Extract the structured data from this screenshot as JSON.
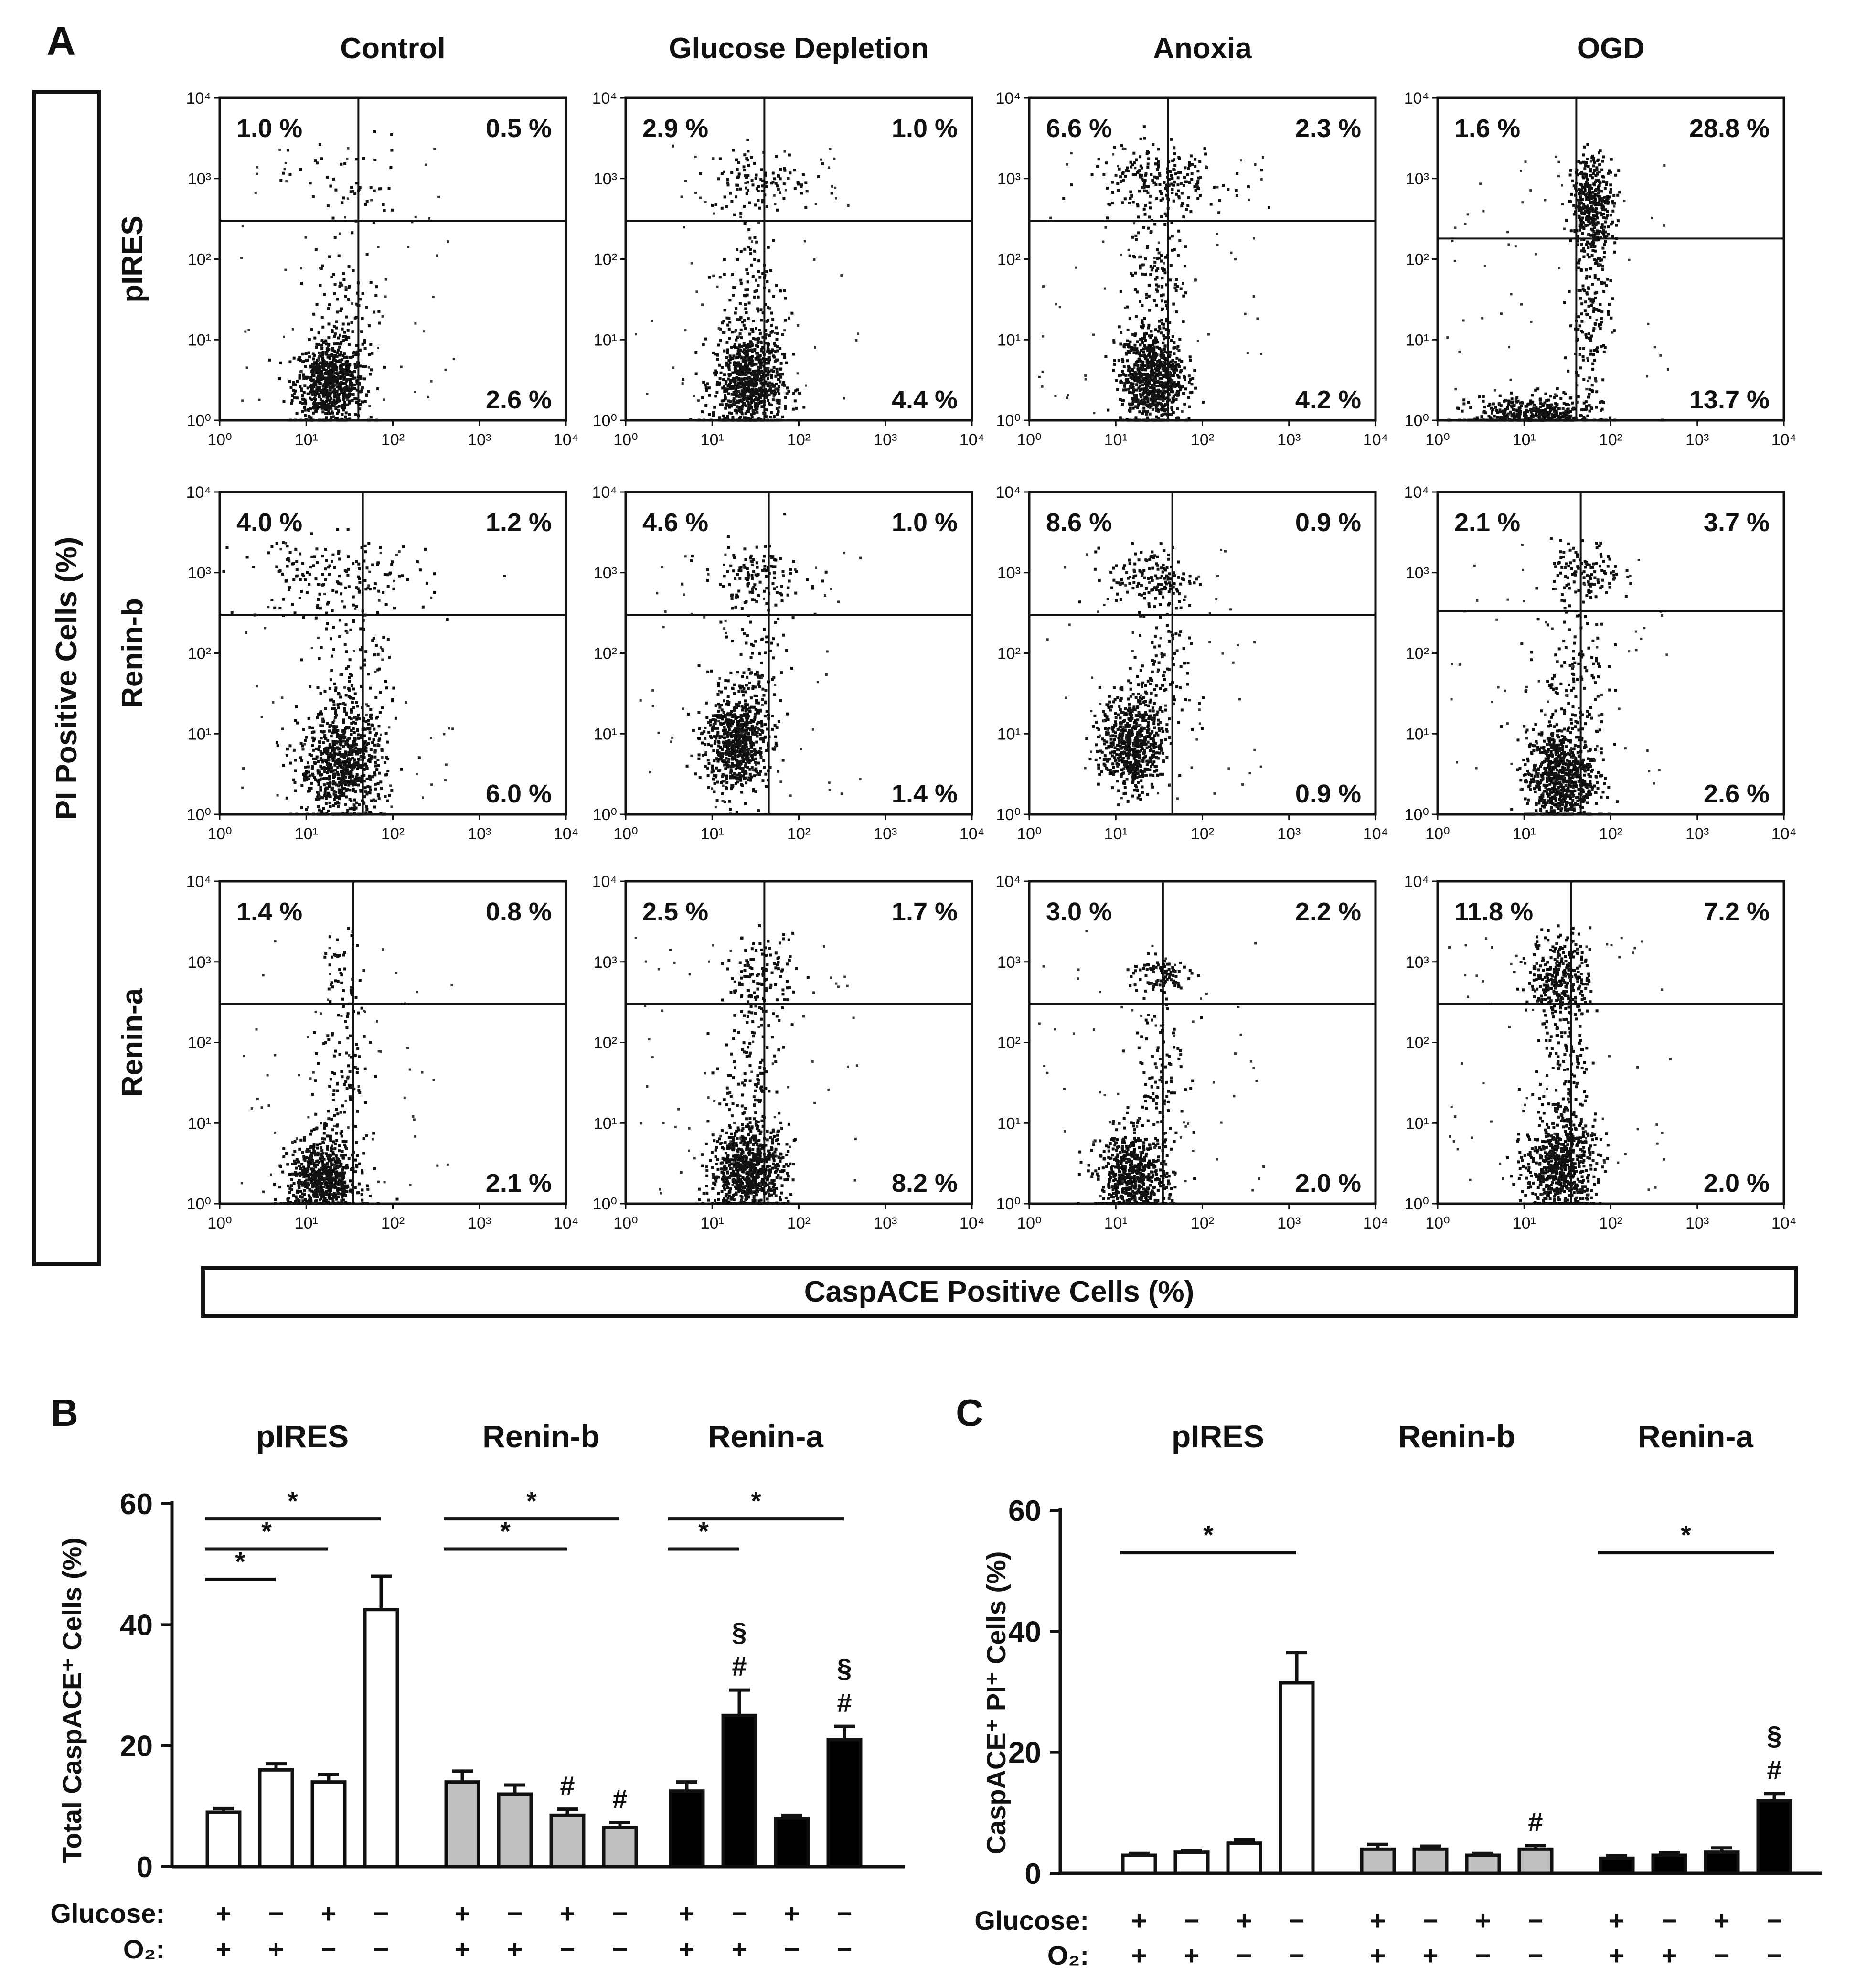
{
  "chart_data": [
    {
      "panel": "A",
      "type": "scatter",
      "subtype": "flow cytometry dot plots (3 x 4 grid)",
      "column_titles": [
        "Control",
        "Glucose Depletion",
        "Anoxia",
        "OGD"
      ],
      "row_labels": [
        "pIRES",
        "Renin-b",
        "Renin-a"
      ],
      "xlabel": "CaspACE Positive Cells (%)",
      "ylabel": "PI Positive Cells (%)",
      "axis_scale": "log10",
      "xlim": [
        1,
        10000
      ],
      "ylim": [
        1,
        10000
      ],
      "x_ticks": [
        "10⁰",
        "10¹",
        "10²",
        "10³",
        "10⁴"
      ],
      "y_ticks": [
        "10⁰",
        "10¹",
        "10²",
        "10³",
        "10⁴"
      ],
      "quadrant_order": [
        "upper-left",
        "upper-right",
        "lower-right"
      ],
      "plots": [
        {
          "row": "pIRES",
          "condition": "Control",
          "gate": {
            "x": 40,
            "y": 300
          },
          "quadrants": [
            "1.0 %",
            "0.5 %",
            "2.6 %"
          ],
          "clusters": [
            {
              "x": 18,
              "y": 3,
              "n": 700,
              "sx": 0.2,
              "sy": 0.25
            },
            {
              "x": 25,
              "y": 15,
              "n": 120,
              "sx": 0.18,
              "sy": 0.5
            },
            {
              "x": 30,
              "y": 900,
              "n": 50,
              "sx": 0.35,
              "sy": 0.3
            }
          ]
        },
        {
          "row": "pIRES",
          "condition": "Glucose Depletion",
          "gate": {
            "x": 40,
            "y": 300
          },
          "quadrants": [
            "2.9 %",
            "1.0 %",
            "4.4 %"
          ],
          "clusters": [
            {
              "x": 25,
              "y": 3,
              "n": 750,
              "sx": 0.2,
              "sy": 0.3
            },
            {
              "x": 30,
              "y": 30,
              "n": 140,
              "sx": 0.2,
              "sy": 0.6
            },
            {
              "x": 35,
              "y": 1000,
              "n": 110,
              "sx": 0.3,
              "sy": 0.2
            }
          ]
        },
        {
          "row": "pIRES",
          "condition": "Anoxia",
          "gate": {
            "x": 40,
            "y": 300
          },
          "quadrants": [
            "6.6 %",
            "2.3 %",
            "4.2 %"
          ],
          "clusters": [
            {
              "x": 25,
              "y": 3.5,
              "n": 750,
              "sx": 0.18,
              "sy": 0.3
            },
            {
              "x": 30,
              "y": 40,
              "n": 170,
              "sx": 0.18,
              "sy": 0.7
            },
            {
              "x": 30,
              "y": 1000,
              "n": 200,
              "sx": 0.4,
              "sy": 0.2
            }
          ]
        },
        {
          "row": "pIRES",
          "condition": "OGD",
          "gate": {
            "x": 40,
            "y": 180
          },
          "quadrants": [
            "1.6 %",
            "28.8 %",
            "13.7 %"
          ],
          "clusters": [
            {
              "x": 12,
              "y": 1.2,
              "n": 450,
              "sx": 0.35,
              "sy": 0.12
            },
            {
              "x": 60,
              "y": 500,
              "n": 380,
              "sx": 0.12,
              "sy": 0.3
            },
            {
              "x": 55,
              "y": 20,
              "n": 160,
              "sx": 0.12,
              "sy": 0.6
            }
          ]
        },
        {
          "row": "Renin-b",
          "condition": "Control",
          "gate": {
            "x": 45,
            "y": 300
          },
          "quadrants": [
            "4.0 %",
            "1.2 %",
            "6.0 %"
          ],
          "clusters": [
            {
              "x": 25,
              "y": 4,
              "n": 750,
              "sx": 0.25,
              "sy": 0.35
            },
            {
              "x": 20,
              "y": 900,
              "n": 160,
              "sx": 0.55,
              "sy": 0.25
            },
            {
              "x": 35,
              "y": 60,
              "n": 120,
              "sx": 0.2,
              "sy": 0.6
            }
          ]
        },
        {
          "row": "Renin-b",
          "condition": "Glucose Depletion",
          "gate": {
            "x": 45,
            "y": 300
          },
          "quadrants": [
            "4.6 %",
            "1.0 %",
            "1.4 %"
          ],
          "clusters": [
            {
              "x": 18,
              "y": 8,
              "n": 650,
              "sx": 0.18,
              "sy": 0.3
            },
            {
              "x": 30,
              "y": 40,
              "n": 120,
              "sx": 0.18,
              "sy": 0.5
            },
            {
              "x": 30,
              "y": 900,
              "n": 130,
              "sx": 0.3,
              "sy": 0.2
            }
          ]
        },
        {
          "row": "Renin-b",
          "condition": "Anoxia",
          "gate": {
            "x": 45,
            "y": 300
          },
          "quadrants": [
            "8.6 %",
            "0.9 %",
            "0.9 %"
          ],
          "clusters": [
            {
              "x": 15,
              "y": 8,
              "n": 600,
              "sx": 0.18,
              "sy": 0.3
            },
            {
              "x": 30,
              "y": 40,
              "n": 110,
              "sx": 0.18,
              "sy": 0.5
            },
            {
              "x": 25,
              "y": 900,
              "n": 150,
              "sx": 0.25,
              "sy": 0.2
            }
          ]
        },
        {
          "row": "Renin-b",
          "condition": "OGD",
          "gate": {
            "x": 45,
            "y": 330
          },
          "quadrants": [
            "2.1 %",
            "3.7 %",
            "2.6 %"
          ],
          "clusters": [
            {
              "x": 25,
              "y": 3,
              "n": 750,
              "sx": 0.2,
              "sy": 0.3
            },
            {
              "x": 35,
              "y": 40,
              "n": 140,
              "sx": 0.2,
              "sy": 0.6
            },
            {
              "x": 50,
              "y": 1000,
              "n": 120,
              "sx": 0.2,
              "sy": 0.2
            }
          ]
        },
        {
          "row": "Renin-a",
          "condition": "Control",
          "gate": {
            "x": 35,
            "y": 300
          },
          "quadrants": [
            "1.4 %",
            "0.8 %",
            "2.1 %"
          ],
          "clusters": [
            {
              "x": 15,
              "y": 2,
              "n": 700,
              "sx": 0.2,
              "sy": 0.25
            },
            {
              "x": 25,
              "y": 20,
              "n": 110,
              "sx": 0.15,
              "sy": 0.6
            },
            {
              "x": 25,
              "y": 800,
              "n": 40,
              "sx": 0.12,
              "sy": 0.25
            }
          ]
        },
        {
          "row": "Renin-a",
          "condition": "Glucose Depletion",
          "gate": {
            "x": 40,
            "y": 300
          },
          "quadrants": [
            "2.5 %",
            "1.7 %",
            "8.2 %"
          ],
          "clusters": [
            {
              "x": 25,
              "y": 2.5,
              "n": 800,
              "sx": 0.22,
              "sy": 0.3
            },
            {
              "x": 30,
              "y": 40,
              "n": 130,
              "sx": 0.18,
              "sy": 0.6
            },
            {
              "x": 35,
              "y": 700,
              "n": 110,
              "sx": 0.2,
              "sy": 0.25
            }
          ]
        },
        {
          "row": "Renin-a",
          "condition": "Anoxia",
          "gate": {
            "x": 35,
            "y": 300
          },
          "quadrants": [
            "3.0 %",
            "2.2 %",
            "2.0 %"
          ],
          "clusters": [
            {
              "x": 15,
              "y": 2,
              "n": 650,
              "sx": 0.2,
              "sy": 0.3
            },
            {
              "x": 30,
              "y": 40,
              "n": 110,
              "sx": 0.15,
              "sy": 0.6
            },
            {
              "x": 30,
              "y": 700,
              "n": 90,
              "sx": 0.18,
              "sy": 0.12
            }
          ]
        },
        {
          "row": "Renin-a",
          "condition": "OGD",
          "gate": {
            "x": 35,
            "y": 300
          },
          "quadrants": [
            "11.8 %",
            "7.2 %",
            "2.0 %"
          ],
          "clusters": [
            {
              "x": 25,
              "y": 3,
              "n": 650,
              "sx": 0.2,
              "sy": 0.3
            },
            {
              "x": 25,
              "y": 700,
              "n": 300,
              "sx": 0.18,
              "sy": 0.25
            },
            {
              "x": 30,
              "y": 50,
              "n": 150,
              "sx": 0.15,
              "sy": 0.6
            }
          ]
        }
      ]
    },
    {
      "panel": "B",
      "type": "bar",
      "ylabel": "Total CaspACE⁺ Cells (%)",
      "ylim": [
        0,
        60
      ],
      "yticks": [
        "0",
        "20",
        "40",
        "60"
      ],
      "row_labels": [
        "Glucose:",
        "O₂:"
      ],
      "groups": [
        {
          "name": "pIRES",
          "fill": "#ffffff",
          "values": [
            9,
            16,
            14,
            42.5
          ],
          "errors": [
            0.6,
            1.0,
            1.2,
            5.5
          ],
          "marks": [
            "",
            "",
            "",
            ""
          ]
        },
        {
          "name": "Renin-b",
          "fill": "#c0c0c0",
          "values": [
            14,
            12,
            8.5,
            6.5
          ],
          "errors": [
            1.8,
            1.5,
            1.0,
            0.8
          ],
          "marks": [
            "",
            "",
            "#",
            "#"
          ]
        },
        {
          "name": "Renin-a",
          "fill": "#000000",
          "values": [
            12.5,
            25,
            8,
            21
          ],
          "errors": [
            1.5,
            4.2,
            0.5,
            2.2
          ],
          "marks": [
            "",
            "§\n#",
            "",
            "§\n#"
          ]
        }
      ],
      "glucose": [
        "+",
        "−",
        "+",
        "−"
      ],
      "o2": [
        "+",
        "+",
        "−",
        "−"
      ],
      "significance": [
        {
          "group": "pIRES",
          "from": 0,
          "to": 1,
          "y": 47.5,
          "label": "*"
        },
        {
          "group": "pIRES",
          "from": 0,
          "to": 2,
          "y": 52.5,
          "label": "*"
        },
        {
          "group": "pIRES",
          "from": 0,
          "to": 3,
          "y": 57.5,
          "label": "*"
        },
        {
          "group": "Renin-b",
          "from": 0,
          "to": 2,
          "y": 52.5,
          "label": "*"
        },
        {
          "group": "Renin-b",
          "from": 0,
          "to": 3,
          "y": 57.5,
          "label": "*"
        },
        {
          "group": "Renin-a",
          "from": 0,
          "to": 1,
          "y": 52.5,
          "label": "*"
        },
        {
          "group": "Renin-a",
          "from": 0,
          "to": 3,
          "y": 57.5,
          "label": "*"
        }
      ]
    },
    {
      "panel": "C",
      "type": "bar",
      "ylabel": "CaspACE⁺ PI⁺ Cells (%)",
      "ylim": [
        0,
        60
      ],
      "yticks": [
        "0",
        "20",
        "40",
        "60"
      ],
      "row_labels": [
        "Glucose:",
        "O₂:"
      ],
      "groups": [
        {
          "name": "pIRES",
          "fill": "#ffffff",
          "values": [
            3,
            3.5,
            5,
            31.5
          ],
          "errors": [
            0.3,
            0.3,
            0.5,
            5.0
          ],
          "marks": [
            "",
            "",
            "",
            ""
          ]
        },
        {
          "name": "Renin-b",
          "fill": "#c0c0c0",
          "values": [
            4,
            4,
            3,
            4
          ],
          "errors": [
            0.8,
            0.5,
            0.3,
            0.6
          ],
          "marks": [
            "",
            "",
            "",
            "#"
          ]
        },
        {
          "name": "Renin-a",
          "fill": "#000000",
          "values": [
            2.5,
            3,
            3.5,
            12
          ],
          "errors": [
            0.4,
            0.4,
            0.7,
            1.2
          ],
          "marks": [
            "",
            "",
            "",
            "§\n#"
          ]
        }
      ],
      "glucose": [
        "+",
        "−",
        "+",
        "−"
      ],
      "o2": [
        "+",
        "+",
        "−",
        "−"
      ],
      "significance": [
        {
          "group": "pIRES",
          "from": 0,
          "to": 3,
          "y": 53,
          "label": "*"
        },
        {
          "group": "Renin-a",
          "from": 0,
          "to": 3,
          "y": 53,
          "label": "*"
        }
      ]
    }
  ]
}
